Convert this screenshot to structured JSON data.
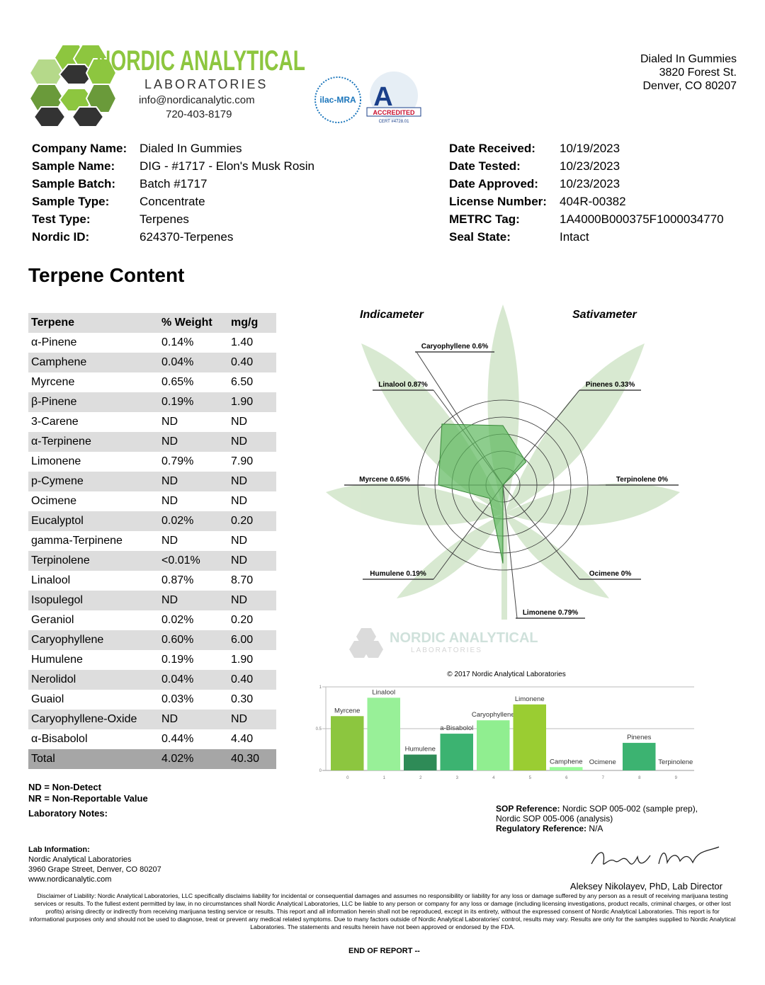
{
  "header": {
    "lab_name": "NORDIC ANALYTICAL",
    "lab_sub": "LABORATORIES",
    "email": "info@nordicanalytic.com",
    "phone": "720-403-8179",
    "ilac": "ilac-MRA",
    "accredited": "ACCREDITED",
    "cert": "CERT #4728.01",
    "client": [
      "Dialed In Gummies",
      "3820 Forest St.",
      "Denver, CO 80207"
    ]
  },
  "info_left": [
    {
      "label": "Company Name:",
      "value": "Dialed In Gummies"
    },
    {
      "label": "Sample Name:",
      "value": "DIG - #1717 - Elon's Musk Rosin"
    },
    {
      "label": "Sample Batch:",
      "value": "Batch #1717"
    },
    {
      "label": "Sample Type:",
      "value": "Concentrate"
    },
    {
      "label": "Test Type:",
      "value": "Terpenes"
    },
    {
      "label": "Nordic ID:",
      "value": "624370-Terpenes"
    }
  ],
  "info_right": [
    {
      "label": "Date Received:",
      "value": "10/19/2023"
    },
    {
      "label": "Date Tested:",
      "value": "10/23/2023"
    },
    {
      "label": "Date Approved:",
      "value": "10/23/2023"
    },
    {
      "label": "License Number:",
      "value": "404R-00382"
    },
    {
      "label": "METRC Tag:",
      "value": "1A4000B000375F1000034770"
    },
    {
      "label": "Seal State:",
      "value": "Intact"
    }
  ],
  "section_title": "Terpene Content",
  "table": {
    "headers": [
      "Terpene",
      "% Weight",
      "mg/g"
    ],
    "rows": [
      [
        "α-Pinene",
        "0.14%",
        "1.40"
      ],
      [
        "Camphene",
        "0.04%",
        "0.40"
      ],
      [
        "Myrcene",
        "0.65%",
        "6.50"
      ],
      [
        "β-Pinene",
        "0.19%",
        "1.90"
      ],
      [
        "3-Carene",
        "ND",
        "ND"
      ],
      [
        "α-Terpinene",
        "ND",
        "ND"
      ],
      [
        "Limonene",
        "0.79%",
        "7.90"
      ],
      [
        "p-Cymene",
        "ND",
        "ND"
      ],
      [
        "Ocimene",
        "ND",
        "ND"
      ],
      [
        "Eucalyptol",
        "0.02%",
        "0.20"
      ],
      [
        "gamma-Terpinene",
        "ND",
        "ND"
      ],
      [
        "Terpinolene",
        "<0.01%",
        "ND"
      ],
      [
        "Linalool",
        "0.87%",
        "8.70"
      ],
      [
        "Isopulegol",
        "ND",
        "ND"
      ],
      [
        "Geraniol",
        "0.02%",
        "0.20"
      ],
      [
        "Caryophyllene",
        "0.60%",
        "6.00"
      ],
      [
        "Humulene",
        "0.19%",
        "1.90"
      ],
      [
        "Nerolidol",
        "0.04%",
        "0.40"
      ],
      [
        "Guaiol",
        "0.03%",
        "0.30"
      ],
      [
        "Caryophyllene-Oxide",
        "ND",
        "ND"
      ],
      [
        "α-Bisabolol",
        "0.44%",
        "4.40"
      ]
    ],
    "total": [
      "Total",
      "4.02%",
      "40.30"
    ]
  },
  "radar": {
    "type": "radar",
    "left_title": "Indicameter",
    "right_title": "Sativameter",
    "axes": [
      {
        "label": "Caryophyllene 0.6%",
        "value": 0.6
      },
      {
        "label": "Pinenes 0.33%",
        "value": 0.33
      },
      {
        "label": "Terpinolene 0%",
        "value": 0
      },
      {
        "label": "Ocimene 0%",
        "value": 0
      },
      {
        "label": "Limonene 0.79%",
        "value": 0.79
      },
      {
        "label": "Humulene 0.19%",
        "value": 0.19
      },
      {
        "label": "Myrcene 0.65%",
        "value": 0.65
      },
      {
        "label": "Linalool 0.87%",
        "value": 0.87
      }
    ],
    "color": "#5cb85c",
    "watermark": "NORDIC ANALYTICAL",
    "watermark_sub": "LABORATORIES",
    "copyright": "© 2017 Nordic Analytical Laboratories"
  },
  "bar_chart": {
    "type": "bar",
    "categories": [
      "Myrcene",
      "Linalool",
      "Humulene",
      "a-Bisabolol",
      "Caryophyllene",
      "Limonene",
      "Camphene",
      "Ocimene",
      "Pinenes",
      "Terpinolene"
    ],
    "values": [
      0.65,
      0.87,
      0.19,
      0.44,
      0.6,
      0.79,
      0.04,
      0,
      0.33,
      0
    ],
    "colors": [
      "#8cc63f",
      "#98f098",
      "#2e8b57",
      "#3cb371",
      "#90ee90",
      "#9acd32",
      "#98fb98",
      "#1e7b3c",
      "#3cb371",
      "#556b2f"
    ],
    "ylim": [
      0,
      1
    ],
    "yticks": [
      0,
      0.5,
      1
    ],
    "xticks": [
      0,
      1,
      2,
      3,
      4,
      5,
      6,
      7,
      8,
      9
    ]
  },
  "notes": {
    "nd": "ND = Non-Detect",
    "nr": "NR = Non-Reportable Value",
    "lab_notes": "Laboratory Notes:",
    "sop_label": "SOP Reference:",
    "sop_value": "Nordic SOP 005-002 (sample prep),",
    "sop_value2": "Nordic SOP 005-006 (analysis)",
    "reg_label": "Regulatory Reference:",
    "reg_value": "N/A"
  },
  "lab_info": {
    "title": "Lab Information:",
    "lines": [
      "Nordic Analytical Laboratories",
      "3960 Grape Street, Denver, CO 80207",
      "www.nordicanalytic.com"
    ]
  },
  "signatory": "Aleksey Nikolayev, PhD, Lab Director",
  "disclaimer": "Disclaimer of Liability: Nordic Analytical Laboratories, LLC specifically disclaims liability for incidental or consequential damages and assumes no responsibility or liability for any loss or damage suffered by any person as a result of receiving marijuana testing services or results. To the fullest extent permitted by law, in no circumstances shall Nordic Analytical Laboratories, LLC be liable to any person or company for any loss or damage (including licensing investigations, product recalls, criminal charges, or other lost profits) arising directly or indirectly from receiving marijuana testing service or results. This report and all information herein shall not be reproduced, except in its entirety, without the expressed consent of Nordic Analytical Laboratories. This report is for informational purposes only and should not be used to diagnose, treat or prevent any medical related symptoms. Due to many factors outside of Nordic Analytical Laboratories' control, results may vary. Results are only for the samples supplied to Nordic Analytical Laboratories. The statements and results herein have not been approved or endorsed by the FDA.",
  "end": "END OF REPORT --"
}
